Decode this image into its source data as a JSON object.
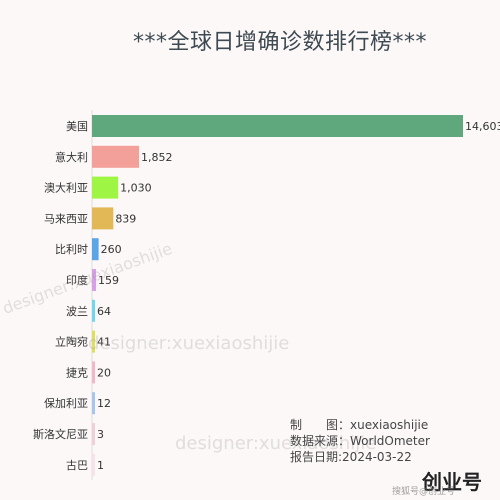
{
  "chart_data": {
    "type": "bar",
    "orientation": "horizontal",
    "title": "***全球日增确诊数排行榜***",
    "xlabel": "",
    "ylabel": "",
    "xlim": [
      0,
      14603
    ],
    "grid": false,
    "legend": "none",
    "categories": [
      "美国",
      "意大利",
      "澳大利亚",
      "马来西亚",
      "比利时",
      "印度",
      "波兰",
      "立陶宛",
      "捷克",
      "保加利亚",
      "斯洛文尼亚",
      "古巴"
    ],
    "values": [
      14603,
      1852,
      1030,
      839,
      260,
      159,
      64,
      41,
      20,
      12,
      3,
      1
    ],
    "value_labels": [
      "14,603",
      "1,852",
      "1,030",
      "839",
      "260",
      "159",
      "64",
      "41",
      "20",
      "12",
      "3",
      "1"
    ],
    "colors": [
      "#5fa77d",
      "#f4a09a",
      "#9ef544",
      "#e2b857",
      "#5aa4e8",
      "#d8a0e6",
      "#6fd8ef",
      "#dfe05a",
      "#f2b7c8",
      "#a7c6ef",
      "#f0d0d8",
      "#f6e2e8"
    ]
  },
  "credits": {
    "maker": "制　　图：xuexiaoshijie",
    "source": "数据来源：WorldOmeter",
    "date": "报告日期:2024-03-22"
  },
  "watermark": "designer:xuexiaoshijie",
  "brand": {
    "name": "创业号",
    "sub": "搜狐号@创业号"
  }
}
